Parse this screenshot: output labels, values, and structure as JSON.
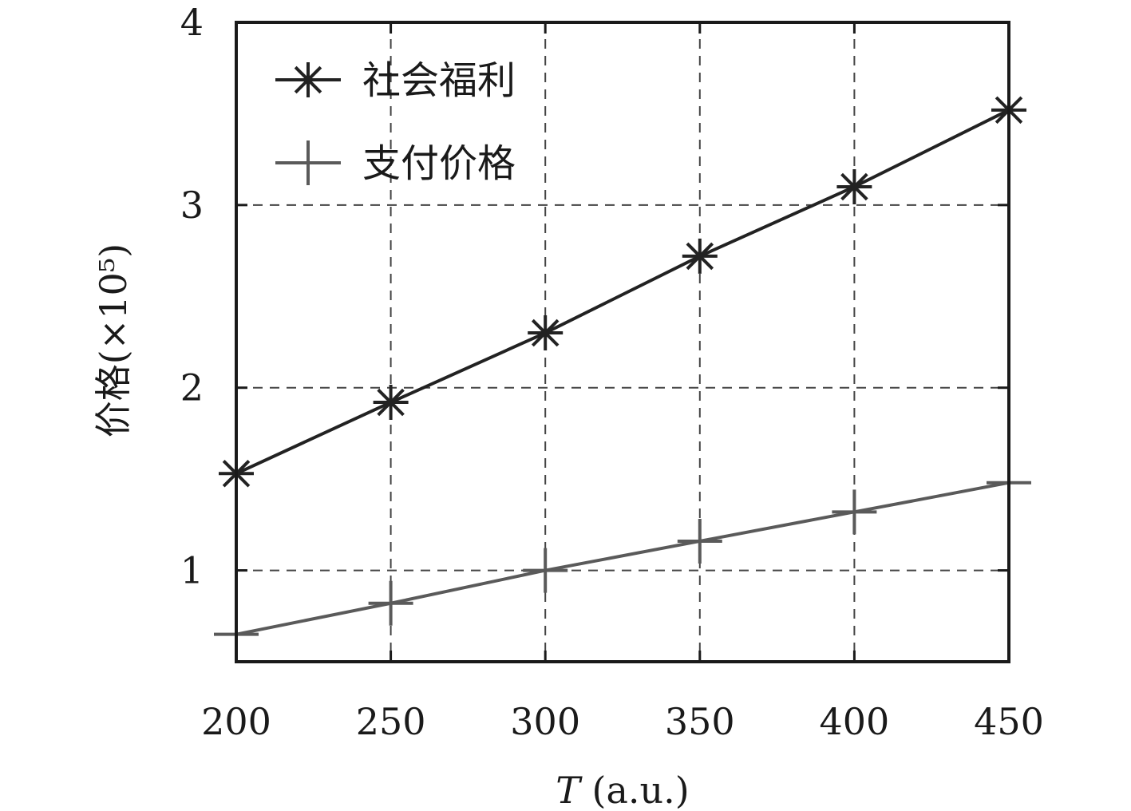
{
  "chart_data": {
    "type": "line",
    "x": [
      200,
      250,
      300,
      350,
      400,
      450
    ],
    "xlim": [
      200,
      450
    ],
    "ylim": [
      0.5,
      4
    ],
    "xticks": [
      "200",
      "250",
      "300",
      "350",
      "400",
      "450"
    ],
    "yticks": [
      "1",
      "2",
      "3",
      "4"
    ],
    "xlabel": "T (a.u.)",
    "ylabel": "价格(×10⁵)",
    "grid": true,
    "legend_position": "top-left",
    "series": [
      {
        "name": "社会福利",
        "values": [
          1.53,
          1.92,
          2.3,
          2.72,
          3.1,
          3.52
        ],
        "color": "#222222",
        "marker": "asterisk"
      },
      {
        "name": "支付价格",
        "values": [
          0.65,
          0.82,
          1.0,
          1.16,
          1.32,
          1.48
        ],
        "color": "#5a5a5a",
        "marker": "plus"
      }
    ]
  }
}
